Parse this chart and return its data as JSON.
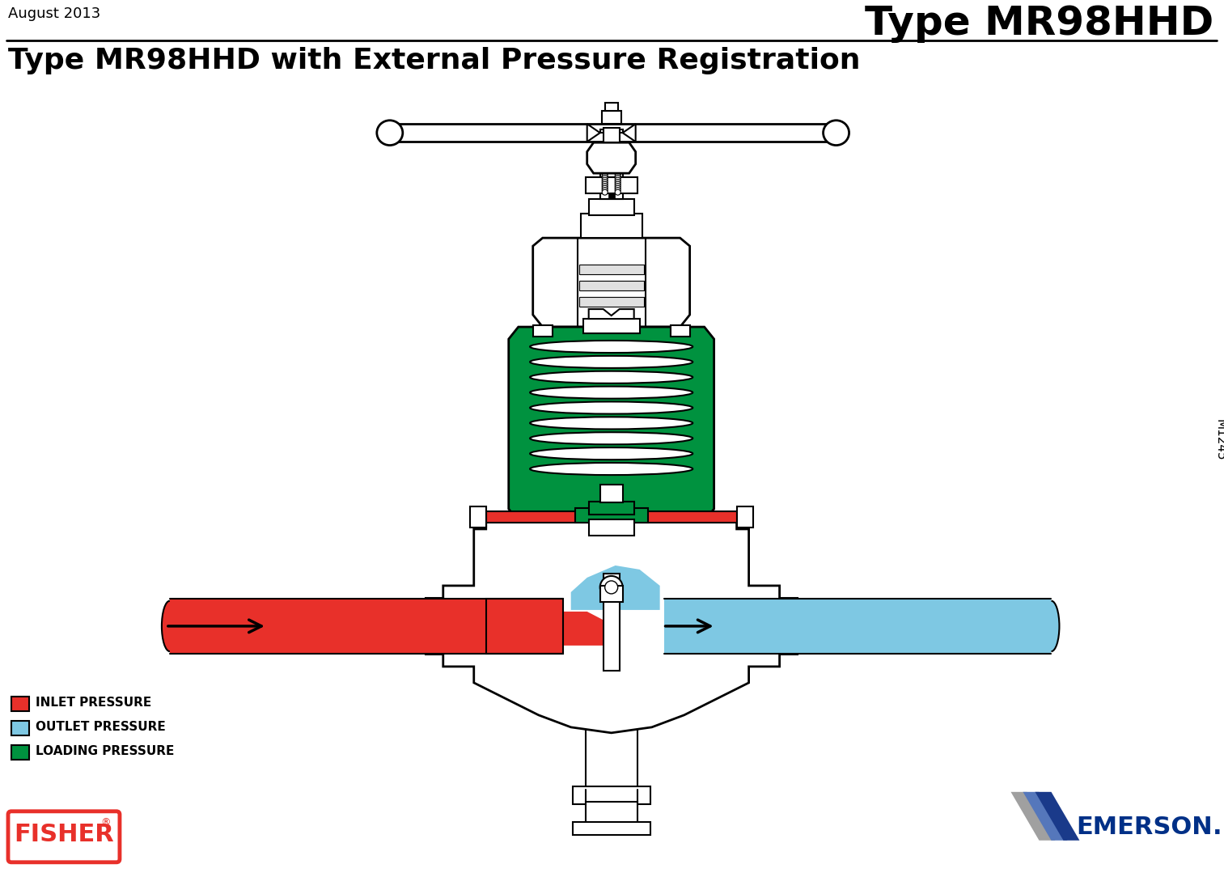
{
  "title_top_right": "Type MR98HHD",
  "date_top_left": "August 2013",
  "main_title": "Type MR98HHD with External Pressure Registration",
  "legend_items": [
    {
      "label": "INLET PRESSURE",
      "color": "#e8302a"
    },
    {
      "label": "OUTLET PRESSURE",
      "color": "#7ec8e3"
    },
    {
      "label": "LOADING PRESSURE",
      "color": "#00923f"
    }
  ],
  "rotated_text": "M1245",
  "bg_color": "#ffffff",
  "green_color": "#00923f",
  "red_color": "#e8302a",
  "blue_color": "#7ec8e3",
  "fisher_red": "#e8302a",
  "emerson_blue": "#003087",
  "figsize": [
    15.13,
    10.84
  ],
  "dpi": 100
}
